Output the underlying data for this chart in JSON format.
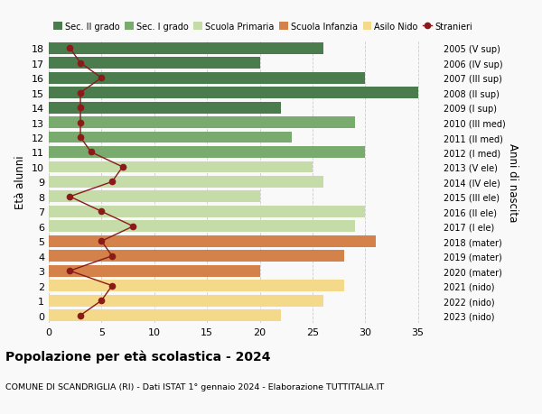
{
  "ages": [
    18,
    17,
    16,
    15,
    14,
    13,
    12,
    11,
    10,
    9,
    8,
    7,
    6,
    5,
    4,
    3,
    2,
    1,
    0
  ],
  "right_labels": [
    "2005 (V sup)",
    "2006 (IV sup)",
    "2007 (III sup)",
    "2008 (II sup)",
    "2009 (I sup)",
    "2010 (III med)",
    "2011 (II med)",
    "2012 (I med)",
    "2013 (V ele)",
    "2014 (IV ele)",
    "2015 (III ele)",
    "2016 (II ele)",
    "2017 (I ele)",
    "2018 (mater)",
    "2019 (mater)",
    "2020 (mater)",
    "2021 (nido)",
    "2022 (nido)",
    "2023 (nido)"
  ],
  "bar_values": [
    26,
    20,
    30,
    35,
    22,
    29,
    23,
    30,
    25,
    26,
    20,
    30,
    29,
    31,
    28,
    20,
    28,
    26,
    22
  ],
  "bar_colors": [
    "#4a7c4e",
    "#4a7c4e",
    "#4a7c4e",
    "#4a7c4e",
    "#4a7c4e",
    "#7aab6e",
    "#7aab6e",
    "#7aab6e",
    "#c5dba8",
    "#c5dba8",
    "#c5dba8",
    "#c5dba8",
    "#c5dba8",
    "#d4824a",
    "#d4824a",
    "#d4824a",
    "#f5d98b",
    "#f5d98b",
    "#f5d98b"
  ],
  "stranieri_values": [
    2,
    3,
    5,
    3,
    3,
    3,
    3,
    4,
    7,
    6,
    2,
    5,
    8,
    5,
    6,
    2,
    6,
    5,
    3
  ],
  "stranieri_color": "#8b1a1a",
  "legend_labels": [
    "Sec. II grado",
    "Sec. I grado",
    "Scuola Primaria",
    "Scuola Infanzia",
    "Asilo Nido",
    "Stranieri"
  ],
  "legend_colors": [
    "#4a7c4e",
    "#7aab6e",
    "#c5dba8",
    "#d4824a",
    "#f5d98b",
    "#8b1a1a"
  ],
  "title": "Popolazione per età scolastica - 2024",
  "subtitle": "COMUNE DI SCANDRIGLIA (RI) - Dati ISTAT 1° gennaio 2024 - Elaborazione TUTTITALIA.IT",
  "ylabel_left": "Età alunni",
  "ylabel_right": "Anni di nascita",
  "xlim": [
    0,
    37
  ],
  "ylim": [
    -0.5,
    18.5
  ],
  "bg_color": "#f9f9f9",
  "grid_color": "#cccccc",
  "bar_height": 0.78
}
